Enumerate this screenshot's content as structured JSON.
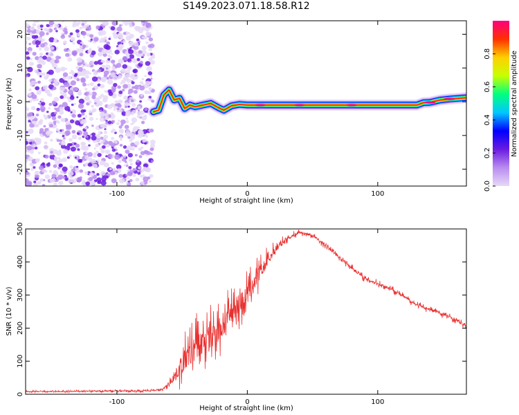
{
  "title": "S149.2023.071.18.58.R12",
  "colors": {
    "snr_line": "#e8302f",
    "scatter": "#6a1be0",
    "colormap": [
      "#e6d9f7",
      "#b98cf0",
      "#6a1be0",
      "#0000ff",
      "#00c8ff",
      "#00ff80",
      "#c8ff00",
      "#ffd000",
      "#ff3000",
      "#ff0080"
    ]
  },
  "chart_data": [
    {
      "type": "heatmap",
      "title": "S149.2023.071.18.58.R12",
      "xlabel": "Height of straight line (km)",
      "ylabel": "Frequency (Hz)",
      "xlim": [
        -170,
        168
      ],
      "ylim": [
        -25,
        24
      ],
      "x_ticks": [
        "-100",
        "0",
        "100"
      ],
      "x_tick_values": [
        -100,
        0,
        100
      ],
      "y_ticks": [
        "20",
        "10",
        "0",
        "-10",
        "-20"
      ],
      "y_tick_values": [
        20,
        10,
        0,
        -10,
        -20
      ],
      "noise_region_x": [
        -170,
        -72
      ],
      "ridge_points": [
        {
          "x": -72,
          "y": -3.0
        },
        {
          "x": -68,
          "y": -2.5
        },
        {
          "x": -64,
          "y": 2.0
        },
        {
          "x": -60,
          "y": 3.5
        },
        {
          "x": -56,
          "y": 0.5
        },
        {
          "x": -52,
          "y": 1.0
        },
        {
          "x": -48,
          "y": -2.0
        },
        {
          "x": -44,
          "y": -1.0
        },
        {
          "x": -40,
          "y": -1.5
        },
        {
          "x": -34,
          "y": -1.0
        },
        {
          "x": -28,
          "y": -0.5
        },
        {
          "x": -22,
          "y": -1.8
        },
        {
          "x": -18,
          "y": -2.5
        },
        {
          "x": -12,
          "y": -1.2
        },
        {
          "x": -6,
          "y": -0.8
        },
        {
          "x": 0,
          "y": -1.0
        },
        {
          "x": 20,
          "y": -1.0
        },
        {
          "x": 60,
          "y": -1.0
        },
        {
          "x": 100,
          "y": -1.0
        },
        {
          "x": 130,
          "y": -1.0
        },
        {
          "x": 135,
          "y": -0.3
        },
        {
          "x": 140,
          "y": -0.2
        },
        {
          "x": 148,
          "y": 0.5
        },
        {
          "x": 155,
          "y": 0.8
        },
        {
          "x": 162,
          "y": 1.0
        },
        {
          "x": 168,
          "y": 1.2
        }
      ],
      "colorbar": {
        "label": "Normalized spectral amplitude",
        "range": [
          0,
          1
        ],
        "ticks": [
          "0.0",
          "0.2",
          "0.4",
          "0.6",
          "0.8"
        ],
        "tick_values": [
          0.0,
          0.2,
          0.4,
          0.6,
          0.8
        ]
      }
    },
    {
      "type": "line",
      "xlabel": "Height of straight line (km)",
      "ylabel": "SNR (10 * v/v)",
      "xlim": [
        -170,
        168
      ],
      "ylim": [
        0,
        500
      ],
      "x_ticks": [
        "-100",
        "0",
        "100"
      ],
      "x_tick_values": [
        -100,
        0,
        100
      ],
      "y_ticks": [
        "0",
        "100",
        "200",
        "300",
        "400",
        "500"
      ],
      "y_tick_values": [
        0,
        100,
        200,
        300,
        400,
        500
      ],
      "series": [
        {
          "x": [
            -170,
            -140,
            -110,
            -80,
            -65,
            -58,
            -50,
            -44,
            -38,
            -30,
            -20,
            -10,
            0,
            10,
            20,
            30,
            40,
            50,
            60,
            75,
            90,
            110,
            130,
            145,
            160,
            168
          ],
          "y": [
            8,
            8,
            10,
            10,
            14,
            40,
            90,
            120,
            150,
            170,
            200,
            260,
            300,
            370,
            430,
            470,
            490,
            480,
            450,
            400,
            350,
            320,
            270,
            250,
            225,
            205
          ],
          "amp": [
            4,
            4,
            5,
            5,
            6,
            20,
            80,
            100,
            110,
            110,
            110,
            100,
            80,
            60,
            30,
            15,
            10,
            10,
            12,
            12,
            12,
            12,
            12,
            12,
            12,
            10
          ]
        }
      ]
    }
  ]
}
